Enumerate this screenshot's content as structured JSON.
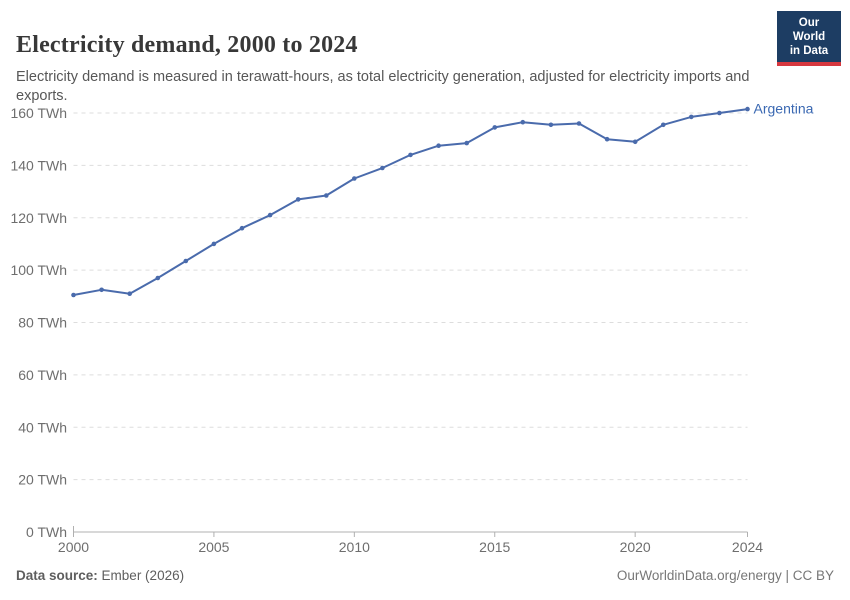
{
  "header": {
    "title": "Electricity demand, 2000 to 2024",
    "subtitle": "Electricity demand is measured in terawatt-hours, as total electricity generation, adjusted for electricity imports and exports.",
    "logo": {
      "line1": "Our World",
      "line2": "in Data"
    }
  },
  "footer": {
    "source_label": "Data source:",
    "source_value": "Ember (2026)",
    "credit": "OurWorldinData.org/energy | CC BY"
  },
  "colors": {
    "line": "#4a6bac",
    "entity_label": "#3a68b2",
    "grid": "#dddddd",
    "axis": "#b0b0b0",
    "tick_text": "#6e6e6e",
    "logo_bg": "#1d3d63",
    "logo_stripe": "#d7383f"
  },
  "chart_data": {
    "type": "line",
    "title": "Electricity demand, 2000 to 2024",
    "unit": "TWh",
    "xlabel": "",
    "ylabel": "",
    "xlim": [
      2000,
      2024
    ],
    "ylim": [
      0,
      160
    ],
    "grid": "horizontal-dashed",
    "legend": "end-of-line-label",
    "x": [
      2000,
      2001,
      2002,
      2003,
      2004,
      2005,
      2006,
      2007,
      2008,
      2009,
      2010,
      2011,
      2012,
      2013,
      2014,
      2015,
      2016,
      2017,
      2018,
      2019,
      2020,
      2021,
      2022,
      2023,
      2024
    ],
    "series": [
      {
        "name": "Argentina",
        "values": [
          90.5,
          92.5,
          91,
          97,
          103.5,
          110,
          116,
          121,
          127,
          128.5,
          135,
          139,
          144,
          147.5,
          148.5,
          154.5,
          156.5,
          155.5,
          156,
          150,
          149,
          155.5,
          158.5,
          160,
          161.5
        ]
      }
    ],
    "y_ticks": [
      {
        "value": 0,
        "label": "0 TWh"
      },
      {
        "value": 20,
        "label": "20 TWh"
      },
      {
        "value": 40,
        "label": "40 TWh"
      },
      {
        "value": 60,
        "label": "60 TWh"
      },
      {
        "value": 80,
        "label": "80 TWh"
      },
      {
        "value": 100,
        "label": "100 TWh"
      },
      {
        "value": 120,
        "label": "120 TWh"
      },
      {
        "value": 140,
        "label": "140 TWh"
      },
      {
        "value": 160,
        "label": "160 TWh"
      }
    ],
    "x_ticks": [
      {
        "value": 2000,
        "label": "2000"
      },
      {
        "value": 2005,
        "label": "2005"
      },
      {
        "value": 2010,
        "label": "2010"
      },
      {
        "value": 2015,
        "label": "2015"
      },
      {
        "value": 2020,
        "label": "2020"
      },
      {
        "value": 2024,
        "label": "2024"
      }
    ]
  }
}
